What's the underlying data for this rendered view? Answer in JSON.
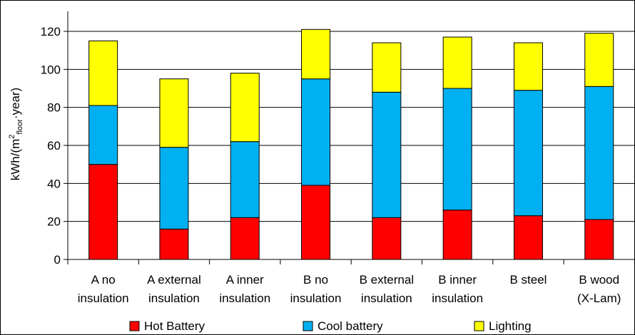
{
  "chart_data": {
    "type": "bar",
    "stacked": true,
    "categories": [
      [
        "A no",
        "insulation"
      ],
      [
        "A external",
        "insulation"
      ],
      [
        "A inner",
        "insulation"
      ],
      [
        "B no",
        "insulation"
      ],
      [
        "B external",
        "insulation"
      ],
      [
        "B inner",
        "insulation"
      ],
      [
        "B steel",
        ""
      ],
      [
        "B wood",
        "(X-Lam)"
      ]
    ],
    "series": [
      {
        "name": "Hot Battery",
        "color": "#ff0000",
        "values": [
          50,
          16,
          22,
          39,
          22,
          26,
          23,
          21
        ]
      },
      {
        "name": "Cool battery",
        "color": "#00b0f0",
        "values": [
          31,
          43,
          40,
          56,
          66,
          64,
          66,
          70
        ]
      },
      {
        "name": "Lighting",
        "color": "#ffff00",
        "values": [
          34,
          36,
          36,
          26,
          26,
          27,
          25,
          28
        ]
      }
    ],
    "ylabel": "kWh/(m²floor·year)",
    "ylabel_parts": {
      "pre": "kWh/(m",
      "sup": "2",
      "sub": "floor",
      "post": "·year)"
    },
    "ylim": [
      0,
      130
    ],
    "yticks": [
      "0",
      "20",
      "40",
      "60",
      "80",
      "100",
      "120"
    ],
    "grid": true,
    "legend_position": "bottom"
  }
}
